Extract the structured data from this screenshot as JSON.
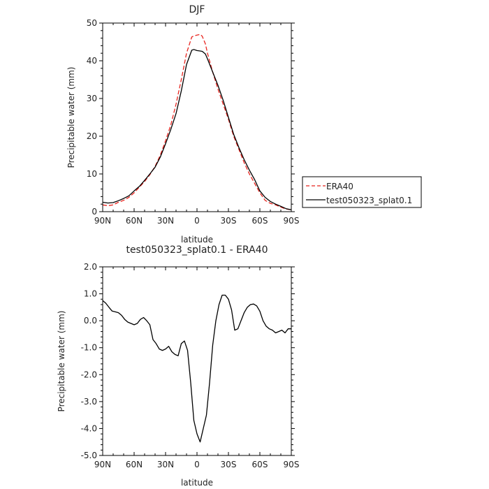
{
  "chart_data": [
    {
      "type": "line",
      "title": "DJF",
      "xlabel": "latitude",
      "ylabel": "Precipitable water (mm)",
      "xlim": [
        -90,
        90
      ],
      "ylim": [
        0,
        50
      ],
      "xticks": [
        -90,
        -60,
        -30,
        0,
        30,
        60,
        90
      ],
      "xtick_labels": [
        "90N",
        "60N",
        "30N",
        "0",
        "30S",
        "60S",
        "90S"
      ],
      "yticks": [
        0,
        10,
        20,
        30,
        40,
        50
      ],
      "ytick_labels": [
        "0",
        "10",
        "20",
        "30",
        "40",
        "50"
      ],
      "legend_position": "right",
      "series": [
        {
          "name": "ERA40",
          "color": "#e8251f",
          "dash": "dashed",
          "x": [
            -90,
            -85,
            -80,
            -75,
            -70,
            -65,
            -60,
            -55,
            -50,
            -45,
            -40,
            -35,
            -30,
            -25,
            -20,
            -15,
            -10,
            -5,
            -3,
            0,
            3,
            5,
            8,
            10,
            15,
            20,
            25,
            30,
            35,
            40,
            45,
            50,
            55,
            60,
            65,
            70,
            75,
            80,
            85,
            90
          ],
          "y": [
            1.8,
            1.6,
            1.8,
            2.5,
            3.0,
            3.8,
            5.0,
            6.5,
            8.0,
            9.8,
            12.0,
            15.0,
            18.8,
            23.0,
            28.5,
            35.0,
            42.0,
            46.3,
            46.6,
            46.8,
            47.0,
            46.5,
            44.5,
            42.0,
            37.0,
            32.5,
            28.5,
            24.5,
            20.0,
            16.5,
            13.0,
            10.0,
            7.5,
            5.0,
            3.0,
            2.2,
            1.8,
            1.2,
            0.7,
            0.5
          ]
        },
        {
          "name": "test050323_splat0.1",
          "color": "#000000",
          "dash": "solid",
          "x": [
            -90,
            -85,
            -80,
            -75,
            -70,
            -65,
            -60,
            -55,
            -50,
            -45,
            -40,
            -35,
            -30,
            -25,
            -20,
            -15,
            -10,
            -5,
            -3,
            0,
            3,
            5,
            8,
            10,
            15,
            20,
            25,
            30,
            35,
            40,
            45,
            50,
            55,
            60,
            65,
            70,
            75,
            80,
            85,
            90
          ],
          "y": [
            2.5,
            2.3,
            2.4,
            2.9,
            3.5,
            4.2,
            5.5,
            6.7,
            8.3,
            10.0,
            11.8,
            14.5,
            18.0,
            21.8,
            26.0,
            32.0,
            39.0,
            42.8,
            43.0,
            42.7,
            42.6,
            42.5,
            41.8,
            40.5,
            37.0,
            33.5,
            29.5,
            25.0,
            20.5,
            17.0,
            13.8,
            11.0,
            8.5,
            5.5,
            3.8,
            2.7,
            2.0,
            1.4,
            0.8,
            0.5
          ]
        }
      ]
    },
    {
      "type": "line",
      "title": "test050323_splat0.1 - ERA40",
      "xlabel": "latitude",
      "ylabel": "Precipitable water (mm)",
      "xlim": [
        -90,
        90
      ],
      "ylim": [
        -5.0,
        2.0
      ],
      "xticks": [
        -90,
        -60,
        -30,
        0,
        30,
        60,
        90
      ],
      "xtick_labels": [
        "90N",
        "60N",
        "30N",
        "0",
        "30S",
        "60S",
        "90S"
      ],
      "yticks": [
        -5,
        -4,
        -3,
        -2,
        -1,
        0,
        1,
        2
      ],
      "ytick_labels": [
        "-5.0",
        "-4.0",
        "-3.0",
        "-2.0",
        "-1.0",
        "0.0",
        "1.0",
        "2.0"
      ],
      "series": [
        {
          "color": "#000000",
          "dash": "solid",
          "x": [
            -90,
            -87,
            -84,
            -81,
            -78,
            -75,
            -72,
            -69,
            -66,
            -63,
            -60,
            -57,
            -54,
            -51,
            -48,
            -45,
            -42,
            -39,
            -36,
            -33,
            -30,
            -27,
            -24,
            -21,
            -18,
            -15,
            -12,
            -9,
            -6,
            -3,
            0,
            3,
            6,
            9,
            12,
            15,
            18,
            21,
            24,
            27,
            30,
            33,
            36,
            39,
            42,
            45,
            48,
            51,
            54,
            57,
            60,
            63,
            66,
            69,
            72,
            75,
            78,
            81,
            84,
            87,
            90
          ],
          "y": [
            0.75,
            0.65,
            0.5,
            0.36,
            0.33,
            0.3,
            0.2,
            0.05,
            -0.05,
            -0.1,
            -0.15,
            -0.1,
            0.05,
            0.12,
            0.0,
            -0.15,
            -0.7,
            -0.85,
            -1.05,
            -1.1,
            -1.05,
            -0.95,
            -1.15,
            -1.25,
            -1.3,
            -0.85,
            -0.75,
            -1.1,
            -2.3,
            -3.7,
            -4.2,
            -4.5,
            -4.0,
            -3.5,
            -2.3,
            -0.9,
            0.0,
            0.6,
            0.95,
            0.95,
            0.8,
            0.4,
            -0.35,
            -0.3,
            0.0,
            0.3,
            0.5,
            0.6,
            0.62,
            0.55,
            0.35,
            0.0,
            -0.2,
            -0.3,
            -0.35,
            -0.45,
            -0.4,
            -0.35,
            -0.45,
            -0.3,
            -0.3
          ]
        }
      ]
    }
  ]
}
